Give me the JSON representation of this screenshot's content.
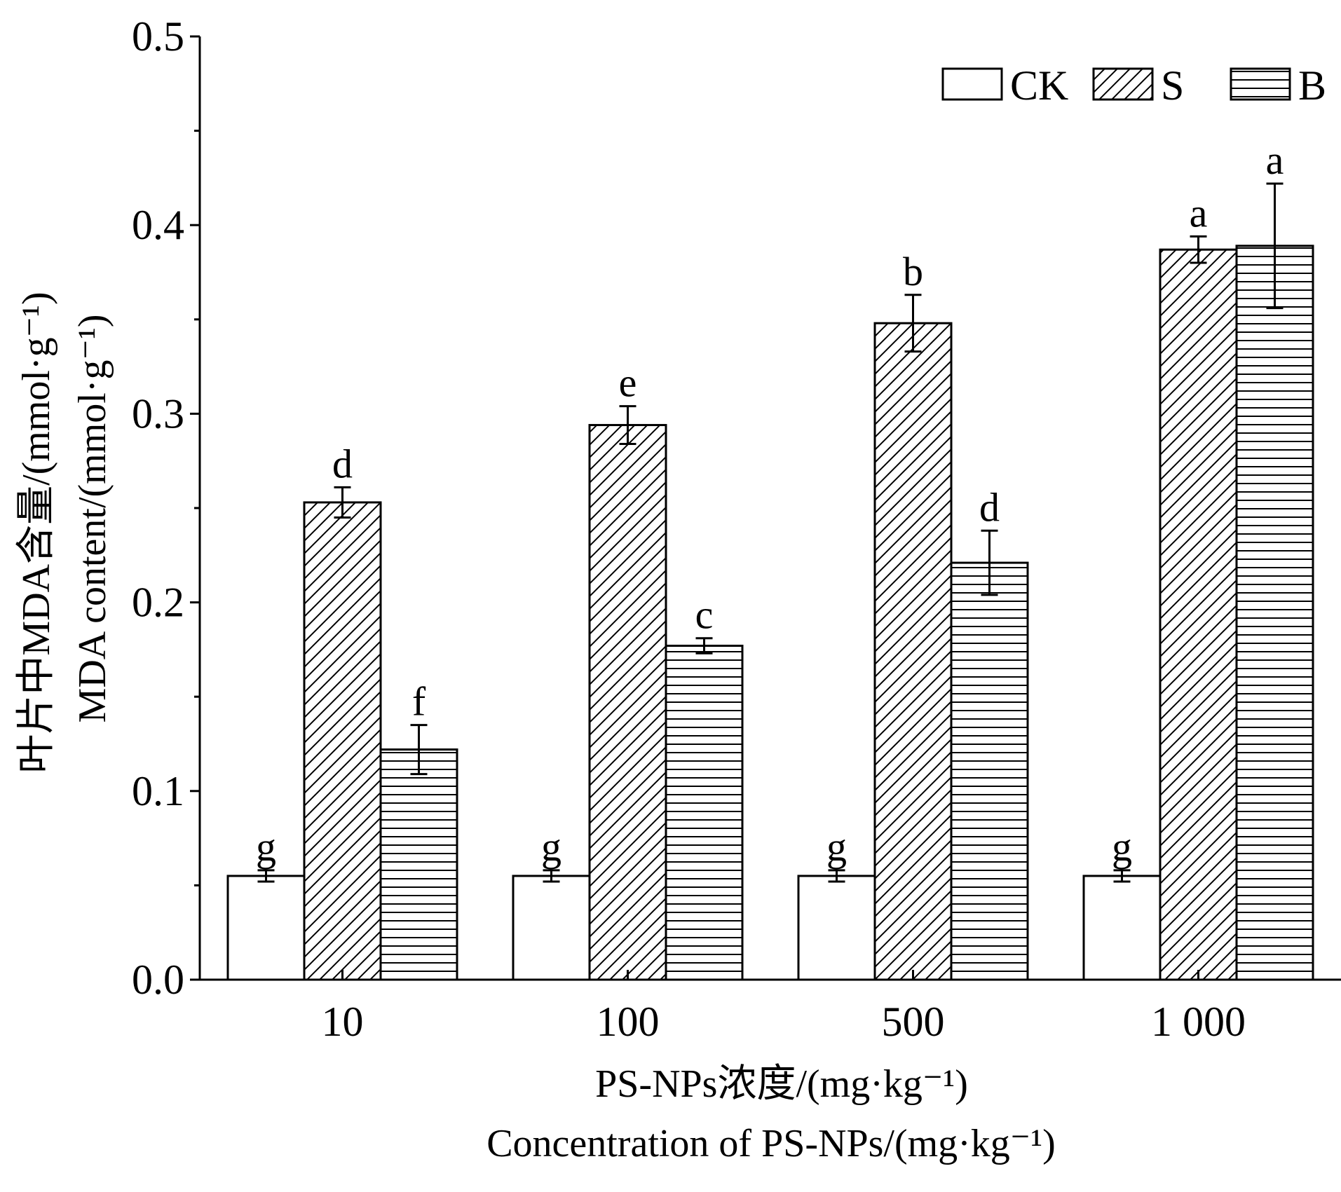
{
  "chart_data": {
    "type": "bar",
    "categories": [
      "10",
      "100",
      "500",
      "1 000"
    ],
    "series": [
      {
        "name": "CK",
        "pattern": "none",
        "values": [
          0.055,
          0.055,
          0.055,
          0.055
        ],
        "errors": [
          0.003,
          0.003,
          0.003,
          0.003
        ],
        "labels": [
          "g",
          "g",
          "g",
          "g"
        ]
      },
      {
        "name": "S",
        "pattern": "diagonal",
        "values": [
          0.253,
          0.294,
          0.348,
          0.387
        ],
        "errors": [
          0.008,
          0.01,
          0.015,
          0.007
        ],
        "labels": [
          "d",
          "e",
          "b",
          "a"
        ]
      },
      {
        "name": "B",
        "pattern": "horizontal",
        "values": [
          0.122,
          0.177,
          0.221,
          0.389
        ],
        "errors": [
          0.013,
          0.004,
          0.017,
          0.033
        ],
        "labels": [
          "f",
          "c",
          "d",
          "a"
        ]
      }
    ],
    "ylim": [
      0.0,
      0.5
    ],
    "yticks": [
      "0.0",
      "0.1",
      "0.2",
      "0.3",
      "0.4",
      "0.5"
    ],
    "ytick_values": [
      0.0,
      0.1,
      0.2,
      0.3,
      0.4,
      0.5
    ],
    "xlabel_cn": "PS-NPs浓度/(mg·kg⁻¹)",
    "xlabel_en": "Concentration of PS-NPs/(mg·kg⁻¹)",
    "ylabel_cn": "叶片中MDA含量/(mmol·g⁻¹)",
    "ylabel_en": "MDA content/(mmol·g⁻¹)",
    "legend_position": "top-right",
    "grid": false,
    "bar_stroke_color": "#000000",
    "background_color": "#ffffff"
  }
}
